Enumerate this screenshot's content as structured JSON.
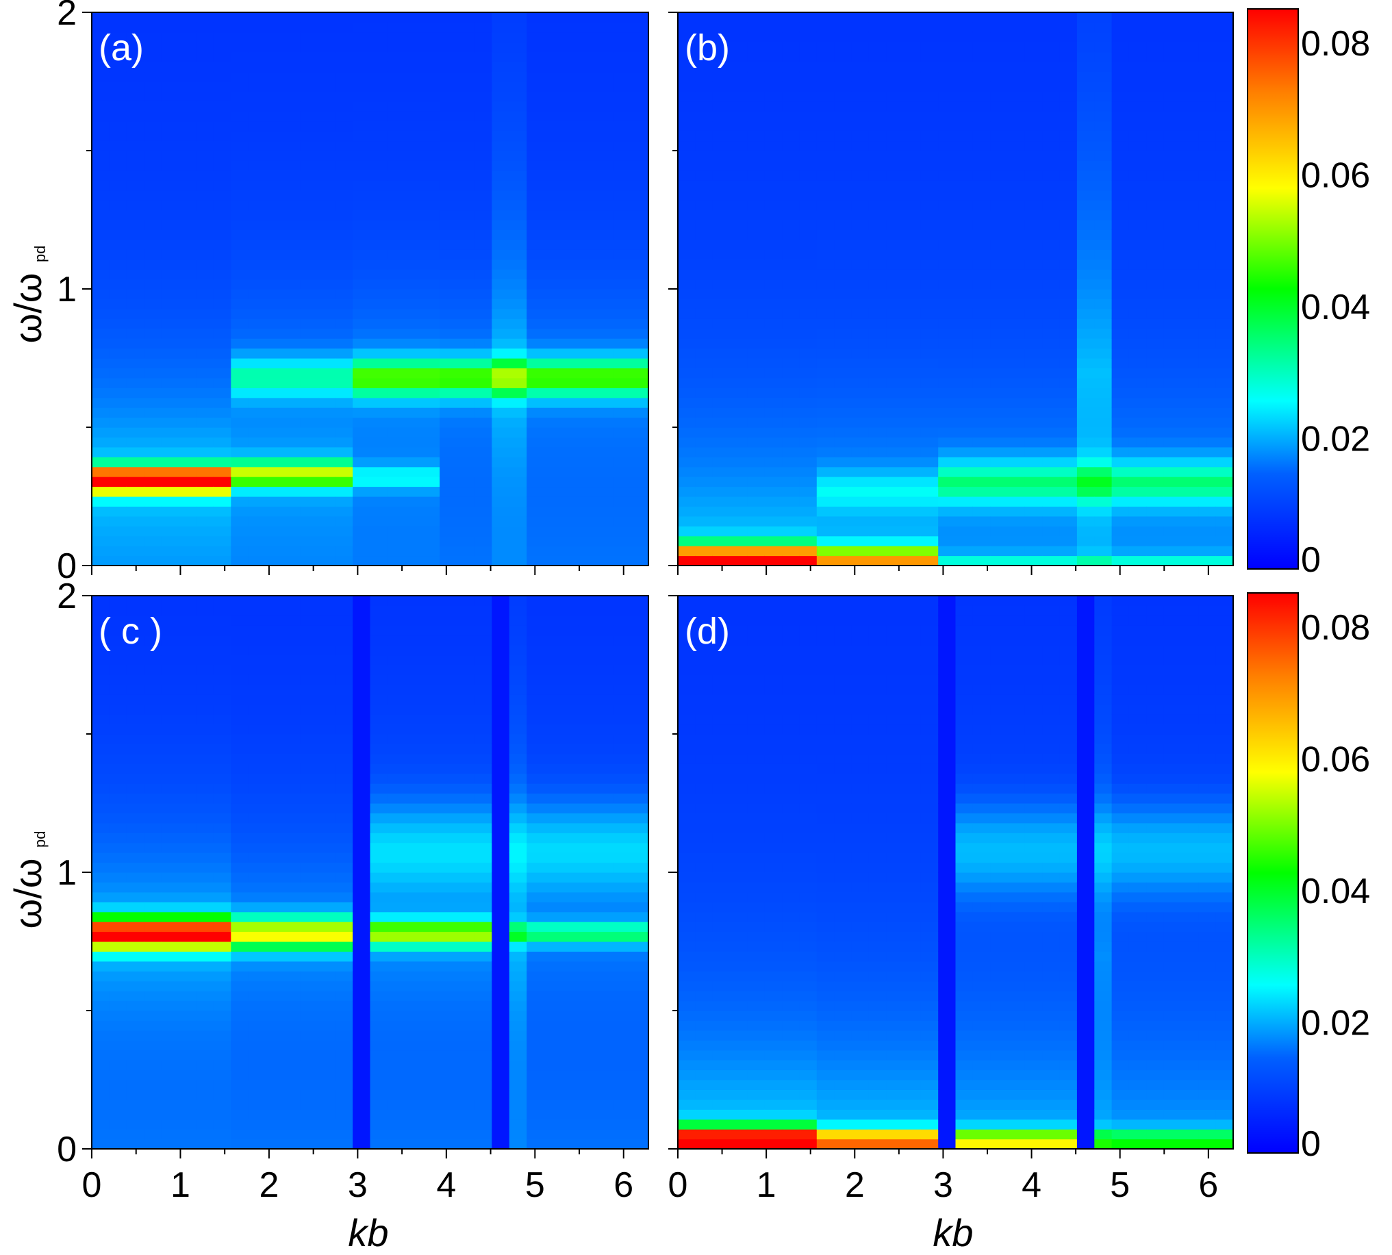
{
  "figure": {
    "x_axis_label": "kb",
    "y_axis_label_main": "ω/ω",
    "y_axis_label_sub": "pd"
  },
  "chart_data": [
    {
      "type": "heatmap",
      "panel_label": "(a)",
      "xlabel": "",
      "ylabel": "ω/ω_pd",
      "xlim": [
        0,
        6.28
      ],
      "ylim": [
        0,
        2
      ],
      "x_ticks": [
        "",
        "",
        "",
        "",
        "",
        "",
        ""
      ],
      "y_ticks": [
        "0",
        "1",
        "2"
      ],
      "bands": [
        {
          "k_start": 0.0,
          "k_end": 1.57,
          "omega": 0.31,
          "width": 0.05,
          "peak": 0.075
        },
        {
          "k_start": 1.57,
          "k_end": 3.0,
          "omega": 0.33,
          "width": 0.05,
          "peak": 0.04
        },
        {
          "k_start": 3.0,
          "k_end": 4.0,
          "omega": 0.32,
          "width": 0.04,
          "peak": 0.015
        },
        {
          "k_start": 1.57,
          "k_end": 3.0,
          "omega": 0.68,
          "width": 0.07,
          "peak": 0.02
        },
        {
          "k_start": 3.0,
          "k_end": 6.28,
          "omega": 0.68,
          "width": 0.07,
          "peak": 0.035
        }
      ],
      "vertical_streaks": [
        {
          "k": 4.7,
          "peak": 0.02
        }
      ],
      "gaps": []
    },
    {
      "type": "heatmap",
      "panel_label": "(b)",
      "xlabel": "",
      "ylabel": "",
      "xlim": [
        0,
        6.28
      ],
      "ylim": [
        0,
        2
      ],
      "x_ticks": [
        "",
        "",
        "",
        "",
        "",
        "",
        ""
      ],
      "y_ticks": [
        "",
        "",
        "",
        "",
        ""
      ],
      "bands": [
        {
          "k_start": 0.0,
          "k_end": 1.57,
          "omega": 0.01,
          "width": 0.06,
          "peak": 0.08
        },
        {
          "k_start": 1.57,
          "k_end": 3.0,
          "omega": 0.02,
          "width": 0.05,
          "peak": 0.05
        },
        {
          "k_start": 3.0,
          "k_end": 6.28,
          "omega": 0.01,
          "width": 0.03,
          "peak": 0.015
        },
        {
          "k_start": 1.57,
          "k_end": 3.0,
          "omega": 0.27,
          "width": 0.07,
          "peak": 0.012
        },
        {
          "k_start": 3.0,
          "k_end": 6.28,
          "omega": 0.3,
          "width": 0.08,
          "peak": 0.022
        }
      ],
      "vertical_streaks": [
        {
          "k": 4.7,
          "peak": 0.03
        }
      ],
      "gaps": []
    },
    {
      "type": "heatmap",
      "panel_label": "( c )",
      "xlabel": "kb",
      "ylabel": "ω/ω_pd",
      "xlim": [
        0,
        6.28
      ],
      "ylim": [
        0,
        2
      ],
      "x_ticks": [
        "0",
        "1",
        "2",
        "3",
        "4",
        "5",
        "6"
      ],
      "y_ticks": [
        "0",
        "1",
        "2"
      ],
      "bands": [
        {
          "k_start": 0.0,
          "k_end": 1.57,
          "omega": 0.78,
          "width": 0.06,
          "peak": 0.07
        },
        {
          "k_start": 1.57,
          "k_end": 3.0,
          "omega": 0.78,
          "width": 0.06,
          "peak": 0.045
        },
        {
          "k_start": 3.0,
          "k_end": 4.7,
          "omega": 0.78,
          "width": 0.05,
          "peak": 0.04
        },
        {
          "k_start": 4.7,
          "k_end": 6.28,
          "omega": 0.78,
          "width": 0.04,
          "peak": 0.025
        },
        {
          "k_start": 3.0,
          "k_end": 6.28,
          "omega": 1.08,
          "width": 0.15,
          "peak": 0.012
        }
      ],
      "vertical_streaks": [
        {
          "k": 4.8,
          "peak": 0.018
        }
      ],
      "gaps": [
        3.05,
        4.7
      ]
    },
    {
      "type": "heatmap",
      "panel_label": "(d)",
      "xlabel": "kb",
      "ylabel": "",
      "xlim": [
        0,
        6.28
      ],
      "ylim": [
        0,
        2
      ],
      "x_ticks": [
        "0",
        "1",
        "2",
        "3",
        "4",
        "5",
        "6"
      ],
      "y_ticks": [
        "",
        "",
        "",
        "",
        ""
      ],
      "bands": [
        {
          "k_start": 0.0,
          "k_end": 1.57,
          "omega": 0.03,
          "width": 0.05,
          "peak": 0.075
        },
        {
          "k_start": 1.57,
          "k_end": 3.0,
          "omega": 0.03,
          "width": 0.04,
          "peak": 0.06
        },
        {
          "k_start": 3.0,
          "k_end": 4.7,
          "omega": 0.03,
          "width": 0.04,
          "peak": 0.045
        },
        {
          "k_start": 4.7,
          "k_end": 6.28,
          "omega": 0.03,
          "width": 0.04,
          "peak": 0.03
        },
        {
          "k_start": 3.0,
          "k_end": 6.28,
          "omega": 1.08,
          "width": 0.15,
          "peak": 0.01
        }
      ],
      "vertical_streaks": [
        {
          "k": 4.7,
          "peak": 0.015
        }
      ],
      "gaps": [
        3.1,
        4.7
      ]
    }
  ],
  "colorbars": [
    {
      "ticks": [
        "0",
        "0.02",
        "0.04",
        "0.06",
        "0.08"
      ],
      "range": [
        0,
        0.085
      ]
    },
    {
      "ticks": [
        "0",
        "0.02",
        "0.04",
        "0.06",
        "0.08"
      ],
      "range": [
        0,
        0.085
      ]
    }
  ],
  "colormap": [
    "#0000ff",
    "#00a0ff",
    "#00ffff",
    "#00ff00",
    "#ffff00",
    "#ff8000",
    "#ff0000"
  ]
}
